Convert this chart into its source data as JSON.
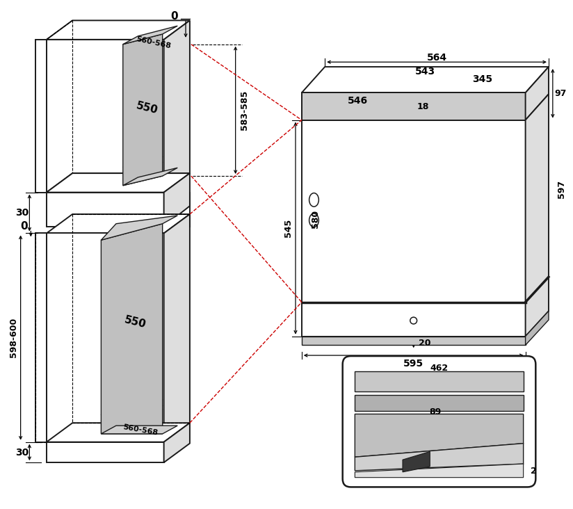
{
  "bg_color": "#ffffff",
  "line_color": "#1a1a1a",
  "red_dashed_color": "#cc0000",
  "gray_fill_dark": "#b0b0b0",
  "gray_fill_mid": "#c0c0c0",
  "gray_fill_light": "#d0d0d0",
  "gray_right_face": "#dedede",
  "dims": {
    "d0_top": "0",
    "d0_left": "0",
    "d30_top": "30",
    "d30_bot": "30",
    "d583_585": "583-585",
    "d560_568_top": "560-568",
    "d550_top": "550",
    "d598_600": "598-600",
    "d550_bot": "550",
    "d560_568_bot": "560-568",
    "d564": "564",
    "d543": "543",
    "d546": "546",
    "d345": "345",
    "d18": "18",
    "d97": "97",
    "d545": "545",
    "d580": "580",
    "d597": "597",
    "d595": "595",
    "d20": "20",
    "d462": "462",
    "d89": "89",
    "d2": "2"
  }
}
